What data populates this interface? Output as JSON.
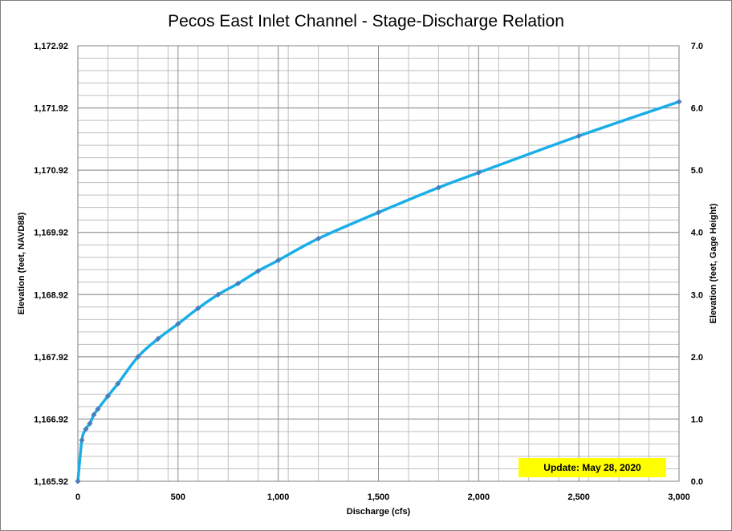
{
  "chart_data": {
    "type": "line",
    "title": "Pecos East Inlet Channel - Stage-Discharge Relation",
    "xlabel": "Discharge (cfs)",
    "ylabel": "Elevation (feet, NAVD88)",
    "y2label": "Elevation (feet, Gage Height)",
    "xlim": [
      0,
      3000
    ],
    "ylim": [
      1165.92,
      1172.92
    ],
    "y2lim": [
      0.0,
      7.0
    ],
    "x_ticks": [
      0,
      500,
      1000,
      1500,
      2000,
      2500,
      3000
    ],
    "x_tick_labels": [
      "0",
      "500",
      "1,000",
      "1,500",
      "2,000",
      "2,500",
      "3,000"
    ],
    "y_ticks": [
      1165.92,
      1166.92,
      1167.92,
      1168.92,
      1169.92,
      1170.92,
      1171.92,
      1172.92
    ],
    "y_tick_labels": [
      "1,165.92",
      "1,166.92",
      "1,167.92",
      "1,168.92",
      "1,169.92",
      "1,170.92",
      "1,171.92",
      "1,172.92"
    ],
    "y2_ticks": [
      0,
      1,
      2,
      3,
      4,
      5,
      6,
      7
    ],
    "y2_tick_labels": [
      "0.0",
      "1.0",
      "2.0",
      "3.0",
      "4.0",
      "5.0",
      "6.0",
      "7.0"
    ],
    "grid": true,
    "series": [
      {
        "x": [
          0,
          20,
          40,
          60,
          80,
          100,
          150,
          200,
          300,
          400,
          500,
          600,
          700,
          800,
          900,
          1000,
          1200,
          1500,
          1800,
          2000,
          2500,
          3000
        ],
        "y": [
          1165.92,
          1166.58,
          1166.76,
          1166.85,
          1166.99,
          1167.08,
          1167.29,
          1167.49,
          1167.92,
          1168.21,
          1168.45,
          1168.7,
          1168.92,
          1169.1,
          1169.3,
          1169.47,
          1169.82,
          1170.24,
          1170.64,
          1170.88,
          1171.47,
          1172.02
        ],
        "color": "#1aaee8",
        "marker_color": "#4a7ebb"
      }
    ],
    "annotation": "Update: May 28, 2020",
    "annotation_color": "#ffff00"
  }
}
